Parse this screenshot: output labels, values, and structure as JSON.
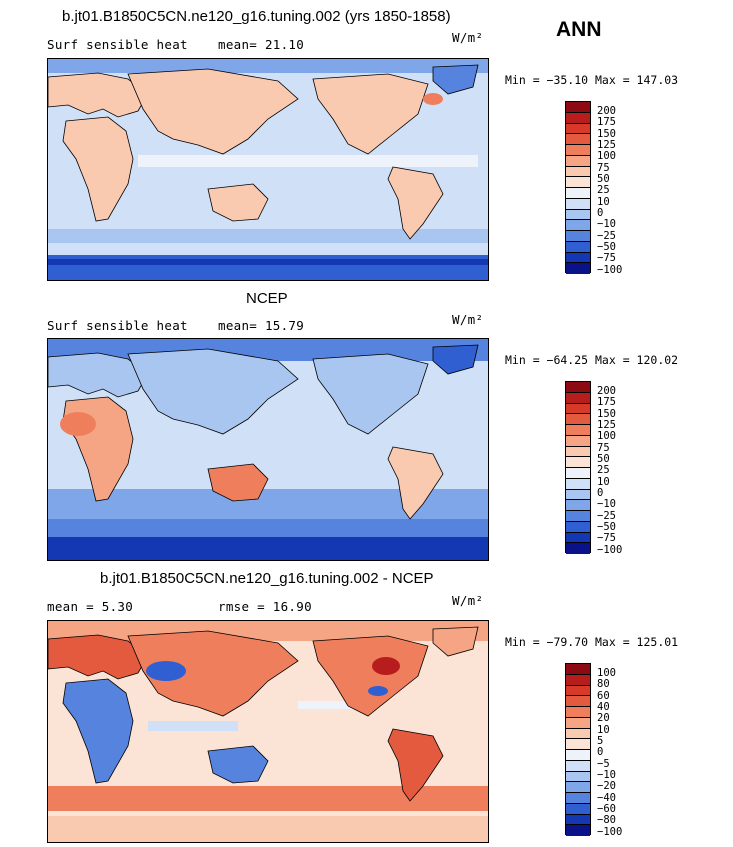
{
  "season": "ANN",
  "panels": [
    {
      "title": "b.jt01.B1850C5CN.ne120_g16.tuning.002 (yrs 1850-1858)",
      "left_label": "Surf sensible heat",
      "right_label": "mean=  21.10",
      "units": "W/m²",
      "minmax": "Min = −35.10 Max = 147.03",
      "colorbar_labels": [
        "200",
        "175",
        "150",
        "125",
        "100",
        "75",
        "50",
        "25",
        "10",
        "0",
        "−10",
        "−25",
        "−50",
        "−75",
        "−100"
      ],
      "colorbar_colors": [
        "#8c0a12",
        "#b81d1d",
        "#d83a2a",
        "#e45a3f",
        "#ef7f5c",
        "#f5a584",
        "#f9c9b0",
        "#fbe3d5",
        "#eef3fb",
        "#cfe0f7",
        "#a9c6f0",
        "#7ea6e8",
        "#5583dd",
        "#2f5fd0",
        "#1437b3",
        "#0a128a"
      ],
      "ocean_color": "#cfe0f7",
      "land_color": "#f9c9b0"
    },
    {
      "title": "NCEP",
      "left_label": "Surf sensible heat",
      "right_label": "mean=  15.79",
      "units": "W/m²",
      "minmax": "Min = −64.25 Max = 120.02",
      "colorbar_labels": [
        "200",
        "175",
        "150",
        "125",
        "100",
        "75",
        "50",
        "25",
        "10",
        "0",
        "−10",
        "−25",
        "−50",
        "−75",
        "−100"
      ],
      "colorbar_colors": [
        "#8c0a12",
        "#b81d1d",
        "#d83a2a",
        "#e45a3f",
        "#ef7f5c",
        "#f5a584",
        "#f9c9b0",
        "#fbe3d5",
        "#eef3fb",
        "#cfe0f7",
        "#a9c6f0",
        "#7ea6e8",
        "#5583dd",
        "#2f5fd0",
        "#1437b3",
        "#0a128a"
      ],
      "ocean_color": "#cfe0f7",
      "land_color": "#a9c6f0"
    },
    {
      "title": "b.jt01.B1850C5CN.ne120_g16.tuning.002 - NCEP",
      "left_label": "mean =   5.30",
      "right_label": "rmse =  16.90",
      "units": "W/m²",
      "minmax": "Min = −79.70 Max = 125.01",
      "colorbar_labels": [
        "100",
        "80",
        "60",
        "40",
        "20",
        "10",
        "5",
        "0",
        "−5",
        "−10",
        "−20",
        "−40",
        "−60",
        "−80",
        "−100"
      ],
      "colorbar_colors": [
        "#8c0a12",
        "#b81d1d",
        "#d83a2a",
        "#e45a3f",
        "#ef7f5c",
        "#f5a584",
        "#f9c9b0",
        "#fbe3d5",
        "#eef3fb",
        "#cfe0f7",
        "#a9c6f0",
        "#7ea6e8",
        "#5583dd",
        "#2f5fd0",
        "#1437b3",
        "#0a128a"
      ],
      "ocean_color": "#fbe3d5",
      "land_color": "#ef7f5c"
    }
  ]
}
